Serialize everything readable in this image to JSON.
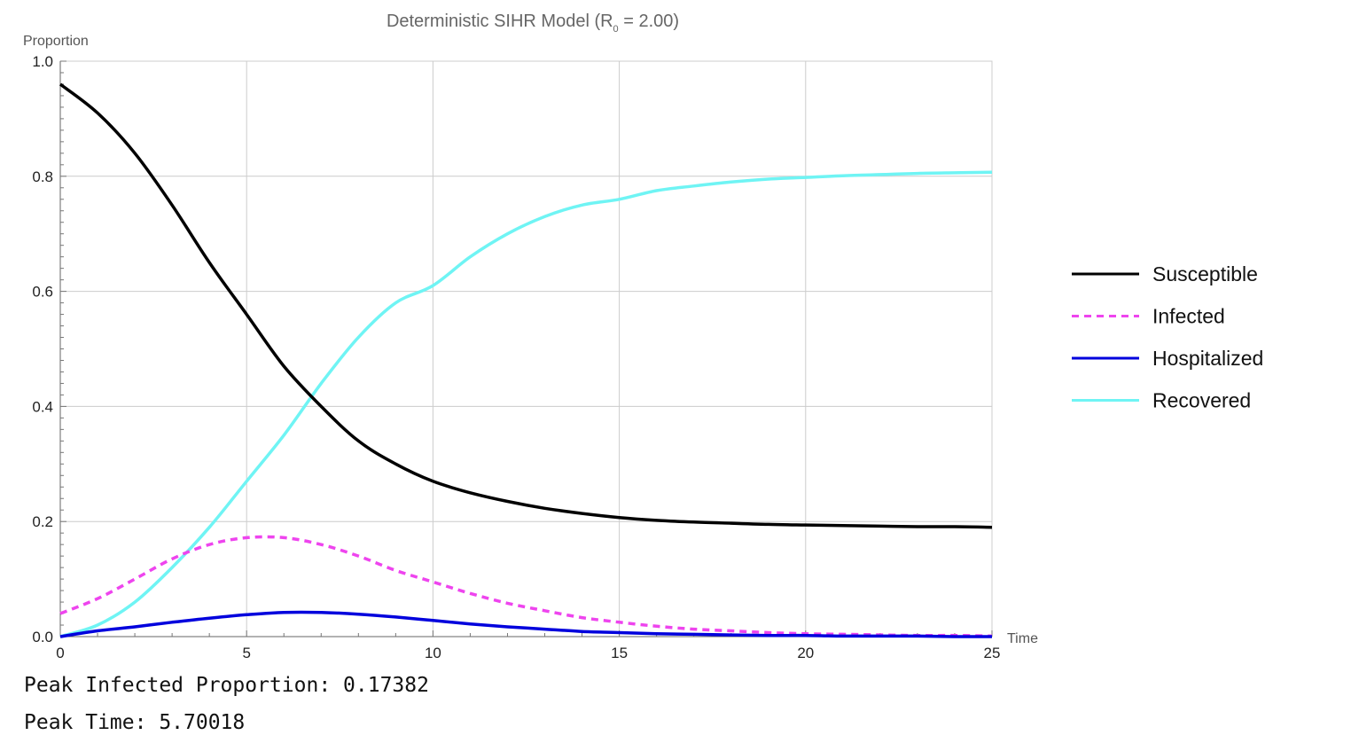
{
  "chart_data": {
    "type": "line",
    "title": "Deterministic SIHR Model (R₀ = 2.00)",
    "title_parts": {
      "prefix": "Deterministic SIHR Model (R",
      "subscript": "0",
      "suffix": " = 2.00)"
    },
    "xlabel": "Time",
    "ylabel": "Proportion",
    "xlim": [
      0,
      25
    ],
    "ylim": [
      0,
      1
    ],
    "x_ticks": [
      0,
      5,
      10,
      15,
      20,
      25
    ],
    "x_tick_labels": [
      "0",
      "5",
      "10",
      "15",
      "20",
      "25"
    ],
    "y_ticks": [
      0,
      0.2,
      0.4,
      0.6,
      0.8,
      1.0
    ],
    "y_tick_labels": [
      "0.0",
      "0.2",
      "0.4",
      "0.6",
      "0.8",
      "1.0"
    ],
    "grid": true,
    "legend_position": "right",
    "x": [
      0,
      1,
      2,
      3,
      4,
      5,
      6,
      7,
      8,
      9,
      10,
      11,
      12,
      13,
      14,
      15,
      16,
      17,
      18,
      19,
      20,
      21,
      22,
      23,
      24,
      25
    ],
    "series": [
      {
        "name": "Susceptible",
        "color": "#000000",
        "dash": "solid",
        "values": [
          0.96,
          0.91,
          0.84,
          0.75,
          0.65,
          0.56,
          0.47,
          0.4,
          0.34,
          0.3,
          0.27,
          0.25,
          0.235,
          0.223,
          0.214,
          0.207,
          0.202,
          0.199,
          0.197,
          0.195,
          0.194,
          0.193,
          0.192,
          0.191,
          0.191,
          0.19
        ]
      },
      {
        "name": "Infected",
        "color": "#ee44ee",
        "dash": "dashed",
        "values": [
          0.04,
          0.066,
          0.1,
          0.135,
          0.16,
          0.172,
          0.172,
          0.16,
          0.14,
          0.115,
          0.095,
          0.075,
          0.058,
          0.045,
          0.033,
          0.025,
          0.018,
          0.013,
          0.01,
          0.007,
          0.005,
          0.004,
          0.003,
          0.002,
          0.002,
          0.001
        ]
      },
      {
        "name": "Hospitalized",
        "color": "#0000dd",
        "dash": "solid",
        "values": [
          0.0,
          0.01,
          0.017,
          0.025,
          0.032,
          0.038,
          0.042,
          0.042,
          0.039,
          0.034,
          0.028,
          0.022,
          0.017,
          0.013,
          0.009,
          0.007,
          0.005,
          0.004,
          0.003,
          0.002,
          0.002,
          0.001,
          0.001,
          0.001,
          0.0,
          0.0
        ]
      },
      {
        "name": "Recovered",
        "color": "#6ff4f4",
        "dash": "solid",
        "values": [
          0.0,
          0.02,
          0.06,
          0.12,
          0.19,
          0.27,
          0.35,
          0.44,
          0.52,
          0.58,
          0.61,
          0.66,
          0.7,
          0.73,
          0.75,
          0.76,
          0.775,
          0.783,
          0.79,
          0.795,
          0.798,
          0.801,
          0.803,
          0.805,
          0.806,
          0.807
        ]
      }
    ]
  },
  "output": {
    "peak_infected": "Peak Infected Proportion: 0.17382",
    "peak_time": "Peak Time: 5.70018"
  }
}
